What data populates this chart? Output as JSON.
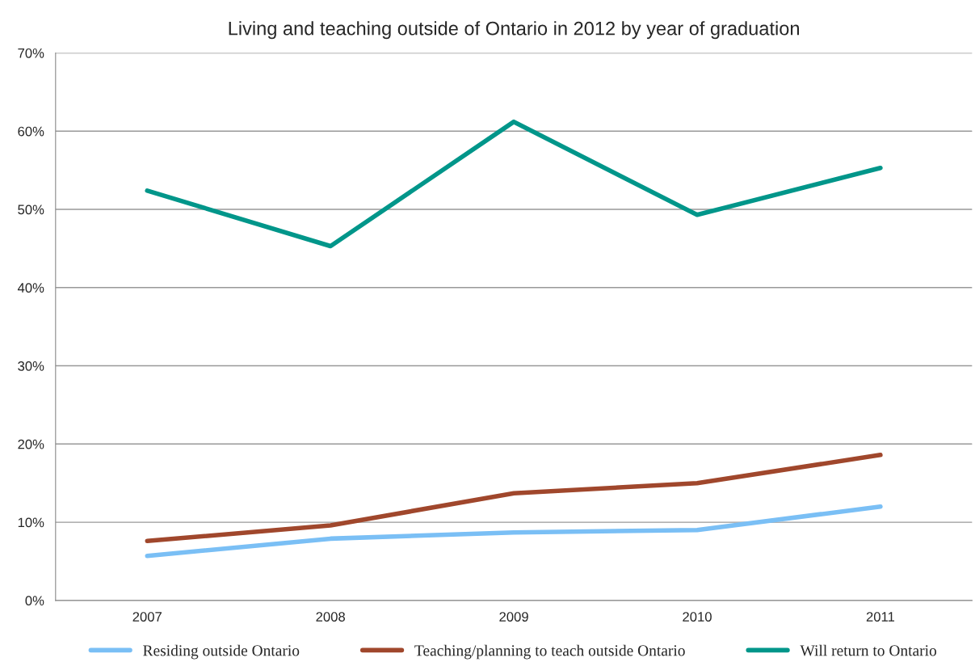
{
  "chart_data": {
    "type": "line",
    "title": "Living and teaching outside of Ontario in 2012 by year of graduation",
    "categories": [
      "2007",
      "2008",
      "2009",
      "2010",
      "2011"
    ],
    "series": [
      {
        "name": "Residing outside Ontario",
        "color": "#7abff5",
        "values": [
          5.7,
          7.9,
          8.7,
          9.0,
          12.0
        ]
      },
      {
        "name": "Teaching/planning to teach outside Ontario",
        "color": "#a0472c",
        "values": [
          7.6,
          9.6,
          13.7,
          15.0,
          18.6
        ]
      },
      {
        "name": "Will return to Ontario",
        "color": "#00968a",
        "values": [
          52.4,
          45.3,
          61.2,
          49.3,
          55.3
        ]
      }
    ],
    "ylim": [
      0,
      70
    ],
    "yticks": [
      {
        "value": 0,
        "label": "0%"
      },
      {
        "value": 10,
        "label": "10%"
      },
      {
        "value": 20,
        "label": "20%"
      },
      {
        "value": 30,
        "label": "30%"
      },
      {
        "value": 40,
        "label": "40%"
      },
      {
        "value": 50,
        "label": "50%"
      },
      {
        "value": 60,
        "label": "60%"
      },
      {
        "value": 70,
        "label": "70%"
      }
    ],
    "grid": "y",
    "legend": "bottom",
    "marker": "none",
    "line_style": "solid"
  }
}
